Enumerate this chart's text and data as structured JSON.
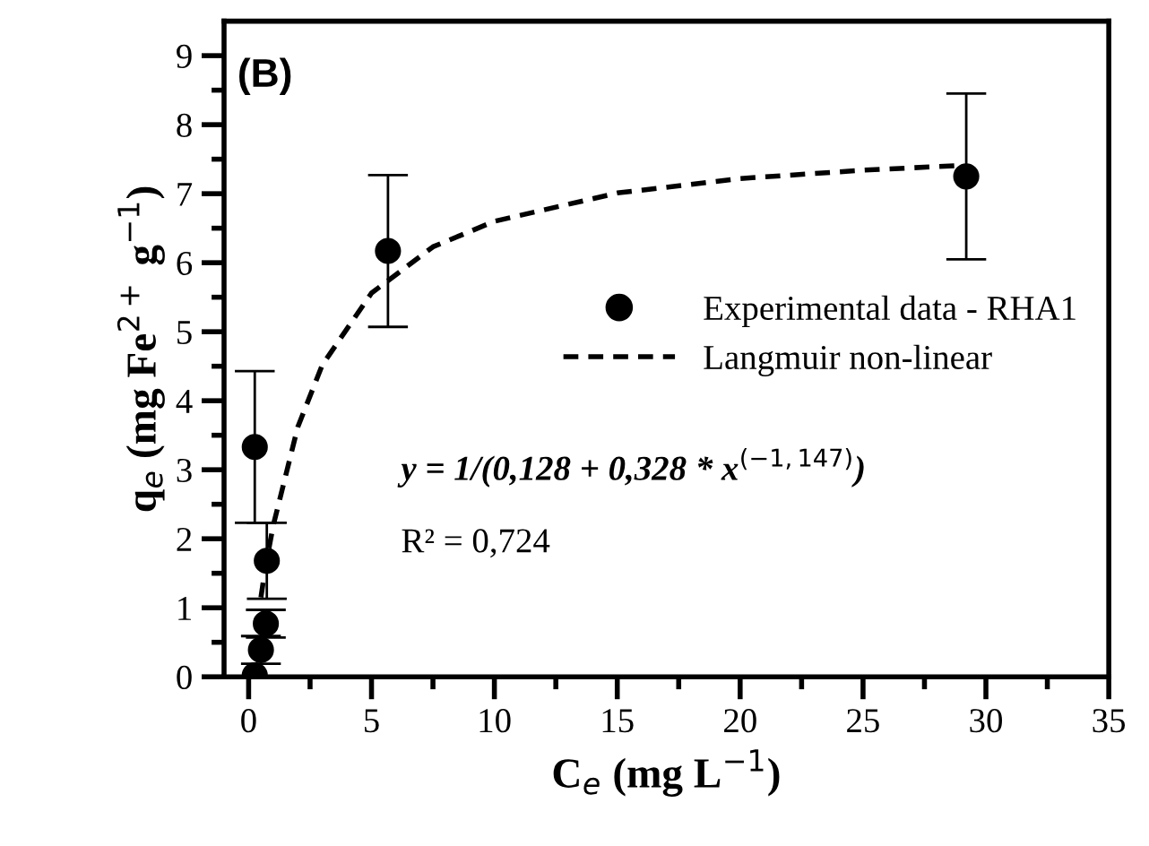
{
  "chart_data": {
    "type": "scatter",
    "xlabel": "C$_{e}$ (mg L$^{−1}$)",
    "ylabel": "q$_{e}$ (mg Fe$^{2+}$ g$^{−1}$)",
    "series": [
      {
        "name": "Experimental data - RHA1",
        "color": "#000000",
        "marker": "circle",
        "x": [
          0.25,
          0.74,
          0.7,
          0.5,
          0.25,
          5.67,
          29.2
        ],
        "values": [
          3.33,
          1.68,
          0.77,
          0.39,
          0.02,
          6.17,
          7.25
        ],
        "errors": [
          1.1,
          0.55,
          0.2,
          0.2,
          null,
          1.1,
          1.2
        ]
      },
      {
        "name": "Langmuir non-linear",
        "type": "line",
        "color": "#000000",
        "line_style": "dashed",
        "marker": "none",
        "x": [
          0.5,
          0.6,
          0.8,
          1,
          2,
          3,
          5,
          7.5,
          10,
          15,
          20,
          25,
          29
        ],
        "values": [
          1.15,
          1.39,
          1.81,
          2.19,
          3.62,
          4.52,
          5.56,
          6.23,
          6.6,
          7.01,
          7.22,
          7.34,
          7.41
        ]
      }
    ],
    "xlim": [
      -1,
      35
    ],
    "ylim": [
      0,
      9.5
    ],
    "xticks": [
      0,
      5,
      10,
      15,
      20,
      25,
      30,
      35
    ],
    "yticks": [
      0,
      1,
      2,
      3,
      4,
      5,
      6,
      7,
      8,
      9
    ],
    "grid": false,
    "legend": "right",
    "annotations": [
      "(B)",
      "y = 1/(0,128 + 0,328 * x$^{(−1,147)}$)",
      "R² = 0,724"
    ]
  }
}
